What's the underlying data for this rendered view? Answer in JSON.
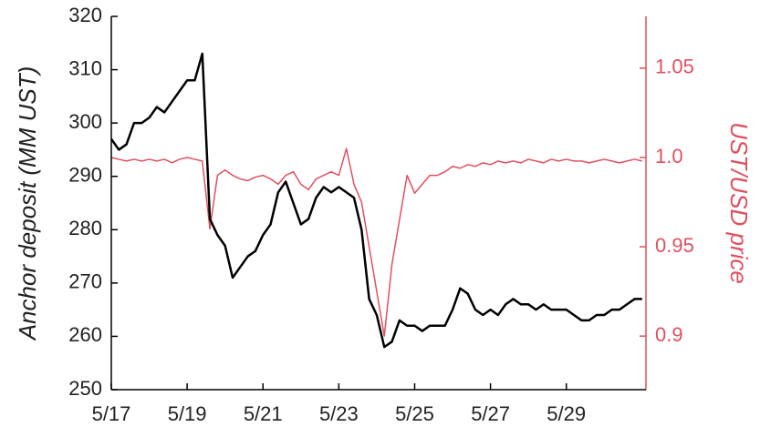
{
  "chart_data": {
    "type": "line",
    "y_label": "Anchor deposit (MM UST)",
    "y2_label": "UST/USD price",
    "x": [
      0,
      0.2,
      0.4,
      0.6,
      0.8,
      1.0,
      1.2,
      1.4,
      1.6,
      1.8,
      2.0,
      2.2,
      2.4,
      2.6,
      2.8,
      3.0,
      3.2,
      3.4,
      3.6,
      3.8,
      4.0,
      4.2,
      4.4,
      4.6,
      4.8,
      5.0,
      5.2,
      5.4,
      5.6,
      5.8,
      6.0,
      6.2,
      6.4,
      6.6,
      6.8,
      7.0,
      7.2,
      7.4,
      7.6,
      7.8,
      8.0,
      8.2,
      8.4,
      8.6,
      8.8,
      9.0,
      9.2,
      9.4,
      9.6,
      9.8,
      10.0,
      10.2,
      10.4,
      10.6,
      10.8,
      11.0,
      11.2,
      11.4,
      11.6,
      11.8,
      12.0,
      12.2,
      12.4,
      12.6,
      12.8,
      13.0,
      13.2,
      13.4,
      13.6,
      13.8,
      14.0
    ],
    "series": [
      {
        "name": "UST/USD price",
        "color": "#e0505f",
        "axis": "y2",
        "values": [
          1.0,
          0.999,
          0.998,
          0.999,
          0.998,
          0.999,
          0.998,
          0.999,
          0.997,
          0.999,
          1.0,
          0.999,
          0.998,
          0.96,
          0.99,
          0.993,
          0.99,
          0.988,
          0.987,
          0.989,
          0.99,
          0.988,
          0.985,
          0.99,
          0.992,
          0.985,
          0.982,
          0.988,
          0.99,
          0.992,
          0.99,
          1.005,
          0.985,
          0.975,
          0.95,
          0.925,
          0.9,
          0.94,
          0.965,
          0.99,
          0.98,
          0.985,
          0.99,
          0.99,
          0.992,
          0.995,
          0.994,
          0.996,
          0.995,
          0.997,
          0.996,
          0.998,
          0.997,
          0.998,
          0.997,
          0.999,
          0.998,
          0.997,
          0.999,
          0.998,
          0.999,
          0.998,
          0.998,
          0.997,
          0.998,
          0.999,
          0.998,
          0.997,
          0.998,
          0.999,
          0.998
        ]
      },
      {
        "name": "Anchor deposit",
        "color": "#000000",
        "values": [
          297,
          295,
          296,
          300,
          300,
          301,
          303,
          302,
          304,
          306,
          308,
          308,
          313,
          282,
          279,
          277,
          271,
          273,
          275,
          276,
          279,
          281,
          287,
          289,
          285,
          281,
          282,
          286,
          288,
          287,
          288,
          287,
          286,
          280,
          267,
          264,
          258,
          259,
          263,
          262,
          262,
          261,
          262,
          262,
          262,
          265,
          269,
          268,
          265,
          264,
          265,
          264,
          266,
          267,
          266,
          266,
          265,
          266,
          265,
          265,
          265,
          264,
          263,
          263,
          264,
          264,
          265,
          265,
          266,
          267,
          267
        ]
      }
    ],
    "xlim": [
      0,
      14.1
    ],
    "xticks": [
      {
        "value": 0,
        "label": "5/17"
      },
      {
        "value": 2,
        "label": "5/19"
      },
      {
        "value": 4,
        "label": "5/21"
      },
      {
        "value": 6,
        "label": "5/23"
      },
      {
        "value": 8,
        "label": "5/25"
      },
      {
        "value": 10,
        "label": "5/27"
      },
      {
        "value": 12,
        "label": "5/29"
      }
    ],
    "ylim": [
      250,
      320
    ],
    "yticks": [
      250,
      260,
      270,
      280,
      290,
      300,
      310,
      320
    ],
    "y2lim": [
      0.87,
      1.079
    ],
    "y2ticks": [
      0.9,
      0.95,
      {
        "value": 1,
        "label": "1.0"
      },
      1.05
    ],
    "y2_color": "#e0505f"
  }
}
